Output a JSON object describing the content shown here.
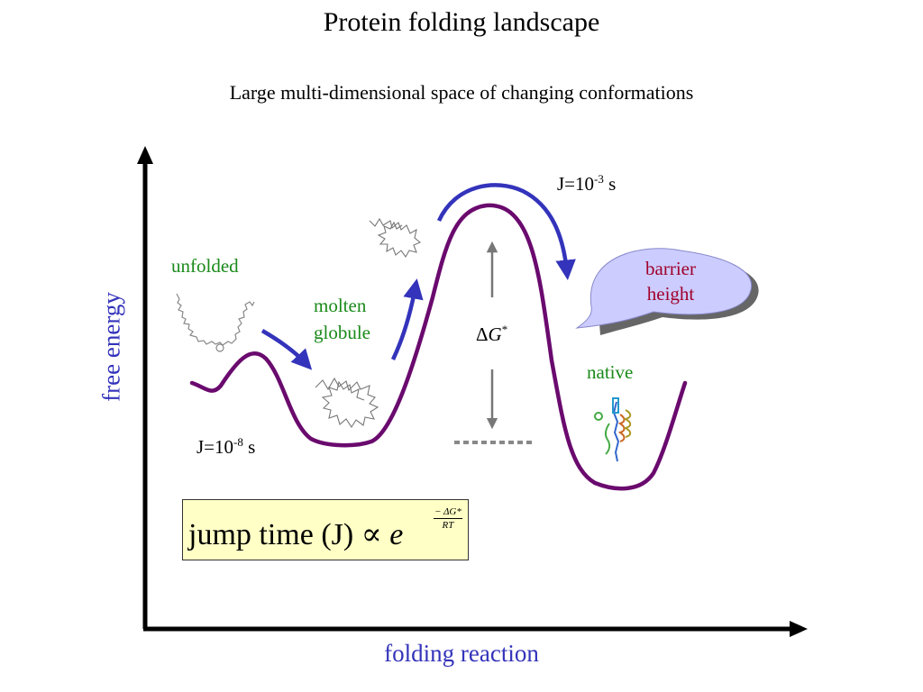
{
  "title": "Protein folding landscape",
  "subtitle": "Large multi-dimensional space of changing conformations",
  "axes": {
    "y_label": "free energy",
    "x_label": "folding reaction"
  },
  "states": {
    "unfolded": "unfolded",
    "molten_line1": "molten",
    "molten_line2": "globule",
    "native": "native"
  },
  "jump_times": {
    "early_prefix": "J=10",
    "early_exp": "-8",
    "early_unit": " s",
    "late_prefix": "J=10",
    "late_exp": "-3",
    "late_unit": " s"
  },
  "barrier": {
    "delta": "Δ",
    "symbol": "G",
    "star": "*",
    "bubble_line1": "barrier",
    "bubble_line2": "height"
  },
  "formula": {
    "text": "jump time (J) ∝ ",
    "e": "e",
    "numerator": "− ΔG*",
    "denominator": "RT"
  },
  "colors": {
    "curve": "#6a0a6e",
    "arrows": "#3333bb",
    "label_green": "#1a8a1a",
    "bubble_fill": "#ccccff",
    "bubble_text": "#a0002a",
    "formula_bg": "#ffffc6"
  }
}
